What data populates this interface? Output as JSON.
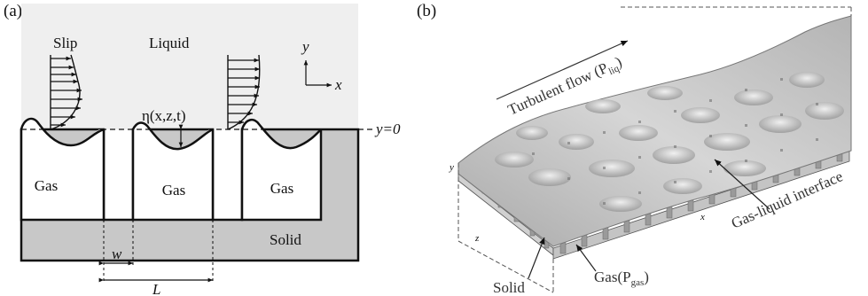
{
  "panel_a": {
    "label": "(a)",
    "labels": {
      "slip": "Slip",
      "liquid": "Liquid",
      "gas_1": "Gas",
      "gas_2": "Gas",
      "gas_3": "Gas",
      "solid": "Solid",
      "eta": "η(x,z,t)",
      "y_eq_0": "y=0",
      "axis_y": "y",
      "axis_x": "x",
      "w": "w",
      "L": "L"
    },
    "colors": {
      "liquid_bg": "#efefef",
      "solid": "#c8c8c8",
      "gas": "#ffffff",
      "ink": "#111111"
    }
  },
  "panel_b": {
    "label": "(b)",
    "labels": {
      "turbulent_flow": "Turbulent flow (P",
      "turbulent_flow_sub": "liq",
      "turbulent_flow_close": ")",
      "interface": "Gas-liquid interface",
      "solid": "Solid",
      "gas": "Gas(P",
      "gas_sub": "gas",
      "gas_close": ")",
      "axis_y": "y",
      "axis_x": "x",
      "axis_z": "z"
    },
    "colors": {
      "surface": "#bdbdbd",
      "surface_dark": "#8a8a8a",
      "posts": "#9a9a9a"
    }
  }
}
